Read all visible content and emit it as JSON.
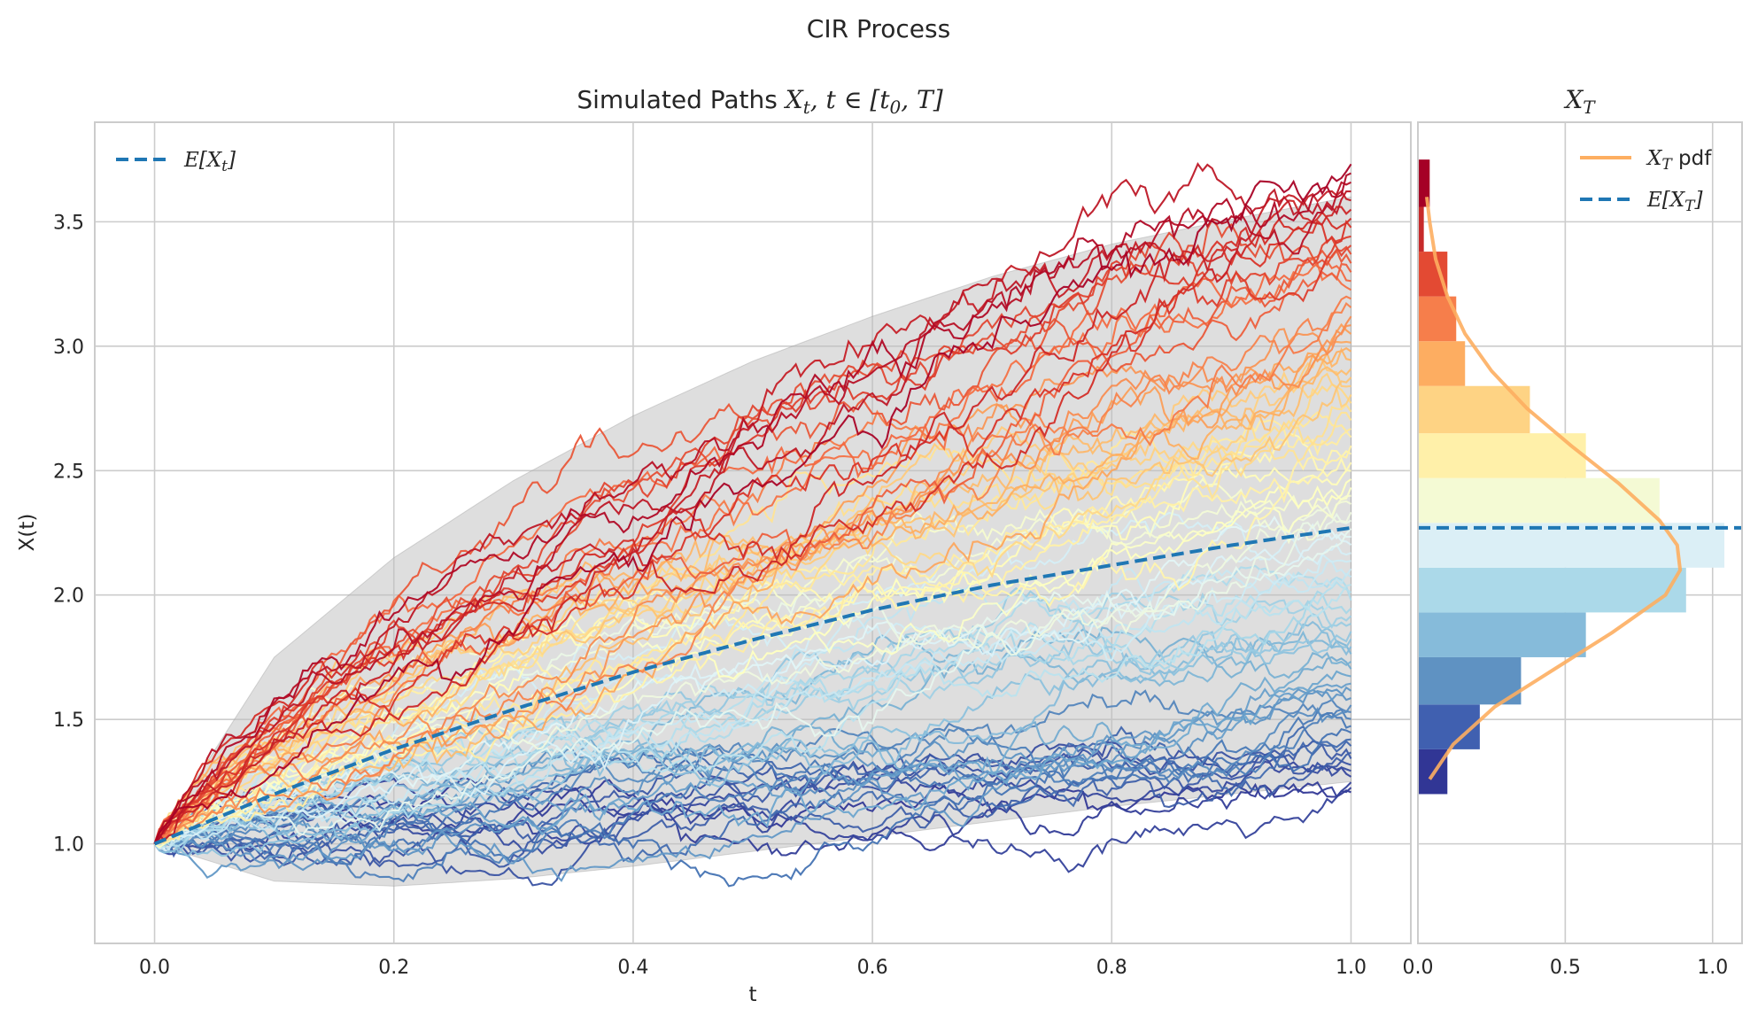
{
  "figure": {
    "suptitle": "CIR Process"
  },
  "colors": {
    "mean_line": "#1f77b4",
    "pdf_line": "#fdae61",
    "band_fill": "#bdbdbd",
    "grid": "#cccccc",
    "frame": "#cccccc"
  },
  "chart_data": [
    {
      "type": "line",
      "title_text": "Simulated Paths ",
      "title_math_x": "X",
      "title_math_sub_t": "t",
      "title_math_rest": ", t ∈ [t",
      "title_math_sub_0": "0",
      "title_math_end": ", T]",
      "xlabel": "t",
      "ylabel": "X(t)",
      "xlim": [
        -0.05,
        1.05
      ],
      "ylim": [
        0.6,
        3.9
      ],
      "xticks": [
        "0.0",
        "0.2",
        "0.4",
        "0.6",
        "0.8",
        "1.0"
      ],
      "yticks": [
        "1.0",
        "1.5",
        "2.0",
        "2.5",
        "3.0",
        "3.5"
      ],
      "grid": true,
      "legend_position": "upper-left",
      "legend": [
        {
          "label_main": "E[X",
          "label_sub": "t",
          "label_end": "]",
          "style": "dashed"
        }
      ],
      "mean": {
        "x": [
          0.0,
          0.1,
          0.2,
          0.3,
          0.4,
          0.5,
          0.6,
          0.7,
          0.8,
          0.9,
          1.0
        ],
        "y": [
          1.0,
          1.2,
          1.38,
          1.54,
          1.69,
          1.82,
          1.94,
          2.04,
          2.12,
          2.2,
          2.27
        ]
      },
      "band": {
        "x": [
          0.0,
          0.1,
          0.2,
          0.3,
          0.4,
          0.5,
          0.6,
          0.7,
          0.8,
          0.9,
          1.0
        ],
        "upper": [
          1.0,
          1.75,
          2.15,
          2.46,
          2.72,
          2.94,
          3.12,
          3.28,
          3.41,
          3.51,
          3.6
        ],
        "lower": [
          1.0,
          0.85,
          0.83,
          0.86,
          0.91,
          0.97,
          1.03,
          1.09,
          1.15,
          1.2,
          1.25
        ]
      },
      "paths": {
        "count": 80,
        "steps": 250,
        "x_start": 0.0,
        "x_end": 1.0,
        "y_start": 1.0,
        "color_map": "RdYlBu_r",
        "end_range": [
          1.2,
          3.75
        ],
        "volatility": 0.45
      }
    },
    {
      "type": "bar",
      "orientation": "horizontal",
      "title_x": "X",
      "title_sub": "T",
      "xlim": [
        0.0,
        1.1
      ],
      "ylim": [
        0.6,
        3.9
      ],
      "xticks": [
        "0.0",
        "0.5",
        "1.0"
      ],
      "grid": true,
      "legend_position": "upper-right",
      "legend": [
        {
          "label_main": "X",
          "label_sub": "T",
          "label_end": " pdf",
          "style": "solid"
        },
        {
          "label_main": "E[X",
          "label_sub": "T",
          "label_end": "]",
          "style": "dashed"
        }
      ],
      "bins": [
        {
          "from": 1.2,
          "to": 1.38,
          "density": 0.1,
          "color": "#313695"
        },
        {
          "from": 1.38,
          "to": 1.56,
          "density": 0.21,
          "color": "#4060b0"
        },
        {
          "from": 1.56,
          "to": 1.75,
          "density": 0.35,
          "color": "#5f92c2"
        },
        {
          "from": 1.75,
          "to": 1.93,
          "density": 0.57,
          "color": "#86bbda"
        },
        {
          "from": 1.93,
          "to": 2.11,
          "density": 0.91,
          "color": "#abd9e9"
        },
        {
          "from": 2.11,
          "to": 2.29,
          "density": 1.04,
          "color": "#dbeff6"
        },
        {
          "from": 2.29,
          "to": 2.47,
          "density": 0.82,
          "color": "#f4fad4"
        },
        {
          "from": 2.47,
          "to": 2.65,
          "density": 0.57,
          "color": "#fff0a9"
        },
        {
          "from": 2.65,
          "to": 2.84,
          "density": 0.38,
          "color": "#fed384"
        },
        {
          "from": 2.84,
          "to": 3.02,
          "density": 0.16,
          "color": "#fdad61"
        },
        {
          "from": 3.02,
          "to": 3.2,
          "density": 0.13,
          "color": "#f67e4b"
        },
        {
          "from": 3.2,
          "to": 3.38,
          "density": 0.1,
          "color": "#e34a33"
        },
        {
          "from": 3.38,
          "to": 3.56,
          "density": 0.02,
          "color": "#c72a2a"
        },
        {
          "from": 3.56,
          "to": 3.75,
          "density": 0.04,
          "color": "#a50026"
        }
      ],
      "pdf": {
        "y": [
          1.26,
          1.4,
          1.55,
          1.7,
          1.85,
          2.0,
          2.1,
          2.2,
          2.3,
          2.45,
          2.6,
          2.75,
          2.9,
          3.05,
          3.2,
          3.35,
          3.5,
          3.6
        ],
        "density": [
          0.04,
          0.12,
          0.26,
          0.46,
          0.66,
          0.84,
          0.89,
          0.88,
          0.82,
          0.68,
          0.52,
          0.37,
          0.25,
          0.16,
          0.1,
          0.06,
          0.04,
          0.03
        ]
      },
      "mean_value": 2.27
    }
  ]
}
